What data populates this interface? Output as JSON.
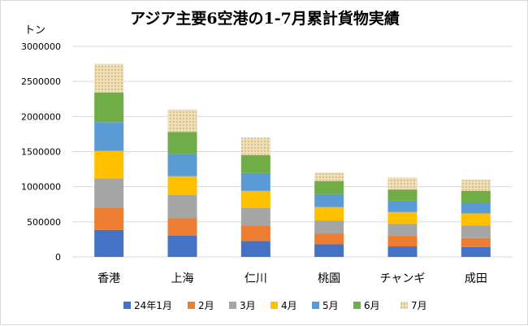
{
  "chart_data": {
    "type": "bar",
    "stacked": true,
    "title": "アジア主要6空港の1-7月累計貨物実績",
    "unit_label": "トン",
    "xlabel": "",
    "ylabel": "",
    "ylim": [
      0,
      3000000
    ],
    "yticks": [
      0,
      500000,
      1000000,
      1500000,
      2000000,
      2500000,
      3000000
    ],
    "ytick_labels": [
      "0",
      "500000",
      "1000000",
      "1500000",
      "2000000",
      "2500000",
      "3000000"
    ],
    "grid": true,
    "legend_position": "bottom",
    "categories": [
      "香港",
      "上海",
      "仁川",
      "桃園",
      "チャンギ",
      "成田"
    ],
    "series": [
      {
        "name": "24年1月",
        "color": "#4472c4",
        "values": [
          385000,
          305000,
          225000,
          180000,
          150000,
          140000
        ]
      },
      {
        "name": "2月",
        "color": "#ed7d31",
        "values": [
          315000,
          245000,
          215000,
          150000,
          150000,
          130000
        ]
      },
      {
        "name": "3月",
        "color": "#a5a5a5",
        "values": [
          420000,
          330000,
          255000,
          190000,
          170000,
          180000
        ]
      },
      {
        "name": "4月",
        "color": "#ffc000",
        "values": [
          390000,
          270000,
          245000,
          190000,
          170000,
          170000
        ]
      },
      {
        "name": "5月",
        "color": "#5b9bd5",
        "values": [
          410000,
          320000,
          255000,
          185000,
          160000,
          150000
        ]
      },
      {
        "name": "6月",
        "color": "#70ad47",
        "values": [
          420000,
          310000,
          255000,
          185000,
          160000,
          170000
        ]
      },
      {
        "name": "7月",
        "color": "#e7d2a6",
        "pattern": true,
        "values": [
          410000,
          320000,
          250000,
          120000,
          170000,
          160000
        ]
      }
    ]
  }
}
